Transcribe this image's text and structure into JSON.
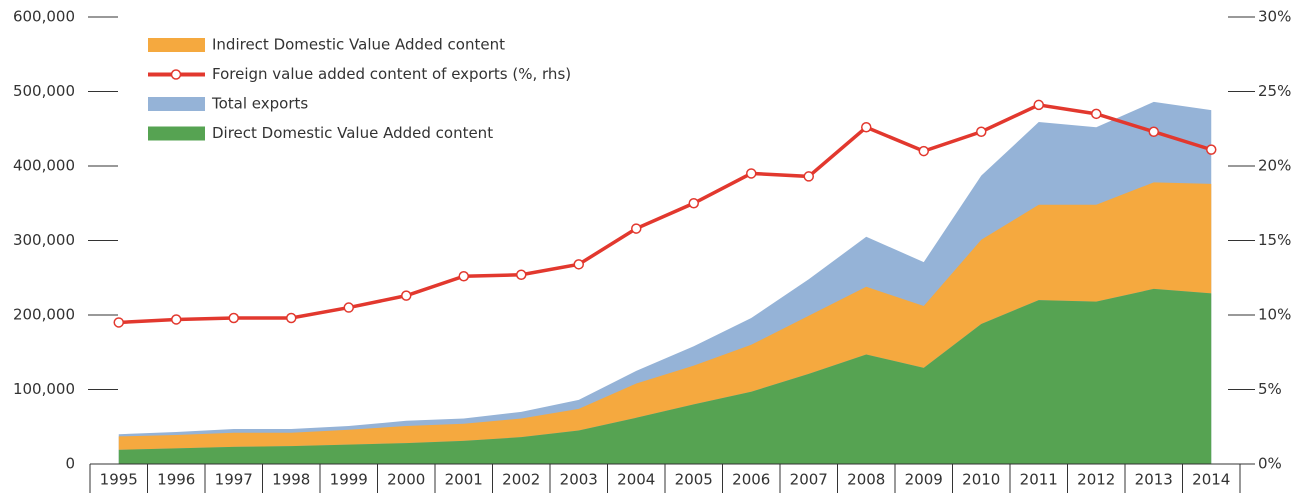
{
  "chart_data": {
    "type": "area",
    "categories": [
      "1995",
      "1996",
      "1997",
      "1998",
      "1999",
      "2000",
      "2001",
      "2002",
      "2003",
      "2004",
      "2005",
      "2006",
      "2007",
      "2008",
      "2009",
      "2010",
      "2011",
      "2012",
      "2013",
      "2014"
    ],
    "series": [
      {
        "name": "Indirect Domestic Value Added content",
        "color": "#f5a93f",
        "values": [
          18000,
          18000,
          19000,
          18000,
          20000,
          23000,
          23000,
          25000,
          29000,
          46000,
          52000,
          63000,
          78000,
          91000,
          83000,
          113000,
          128000,
          130000,
          143000,
          147000
        ]
      },
      {
        "name": "Foreign value added content of exports (%, rhs)",
        "color": "#e2382e",
        "axis": "y2",
        "values": [
          9.5,
          9.7,
          9.8,
          9.8,
          10.5,
          11.3,
          12.6,
          12.7,
          13.4,
          15.8,
          17.5,
          19.5,
          19.3,
          22.6,
          21.0,
          22.3,
          24.1,
          23.5,
          22.3,
          21.1
        ]
      },
      {
        "name": "Total exports",
        "color": "#95b3d7",
        "values": [
          40000,
          43000,
          47000,
          47000,
          51000,
          58000,
          61000,
          70000,
          86000,
          125000,
          158000,
          196000,
          248000,
          305000,
          271000,
          387000,
          459000,
          452000,
          486000,
          475000
        ]
      },
      {
        "name": "Direct Domestic Value Added content",
        "color": "#56a352",
        "values": [
          19000,
          21000,
          23000,
          24000,
          26000,
          28000,
          31000,
          36000,
          45000,
          62000,
          80000,
          97000,
          121000,
          147000,
          129000,
          188000,
          220000,
          218000,
          235000,
          229000
        ]
      }
    ],
    "ylim": [
      0,
      600000
    ],
    "yticks": [
      0,
      {
        "value": 100000,
        "label": "100,000"
      },
      {
        "value": 200000,
        "label": "200,000"
      },
      {
        "value": 300000,
        "label": "300,000"
      },
      {
        "value": 400000,
        "label": "400,000"
      },
      {
        "value": 500000,
        "label": "500,000"
      },
      {
        "value": 600000,
        "label": "600,000"
      }
    ],
    "y2lim": [
      0,
      30
    ],
    "y2ticks": [
      {
        "value": 0,
        "label": "0%"
      },
      {
        "value": 5,
        "label": "5%"
      },
      {
        "value": 10,
        "label": "10%"
      },
      {
        "value": 15,
        "label": "15%"
      },
      {
        "value": 20,
        "label": "20%"
      },
      {
        "value": 25,
        "label": "25%"
      },
      {
        "value": 30,
        "label": "30%"
      }
    ],
    "legend": "upper left"
  }
}
